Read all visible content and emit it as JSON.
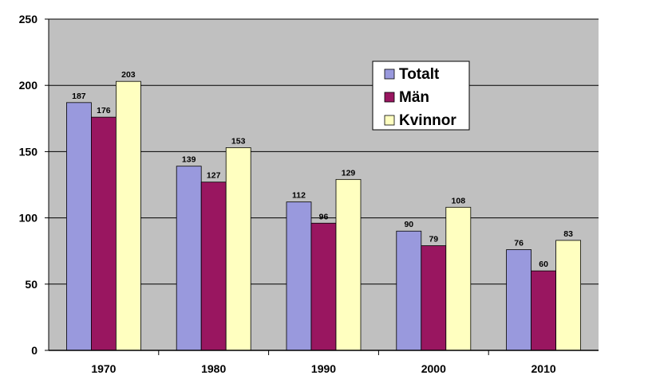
{
  "chart_data": {
    "type": "bar",
    "categories": [
      "1970",
      "1980",
      "1990",
      "2000",
      "2010"
    ],
    "series": [
      {
        "name": "Totalt",
        "values": [
          187,
          139,
          112,
          90,
          76
        ],
        "color": "#9999DD"
      },
      {
        "name": "Män",
        "values": [
          176,
          127,
          96,
          79,
          60
        ],
        "color": "#991660"
      },
      {
        "name": "Kvinnor",
        "values": [
          203,
          153,
          129,
          108,
          83
        ],
        "color": "#FFFFC0"
      }
    ],
    "yticks": [
      "0",
      "50",
      "100",
      "150",
      "200",
      "250"
    ],
    "ylim": [
      0,
      250
    ],
    "grid": true,
    "plot_background": "#C0C0C0",
    "legend_position": "top-right",
    "data_labels": true
  }
}
